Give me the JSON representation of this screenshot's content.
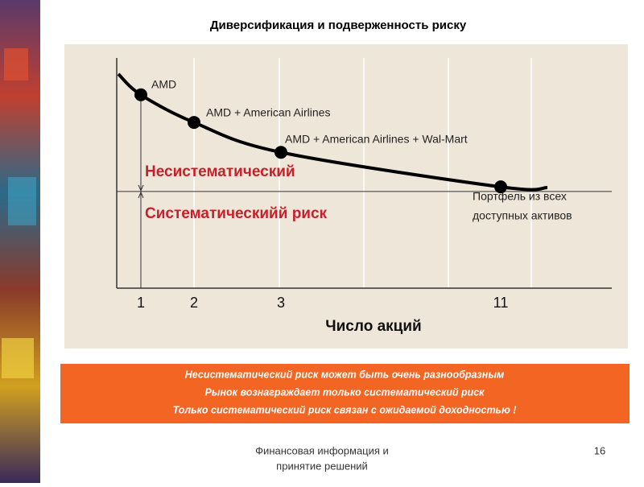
{
  "chart_data": {
    "type": "line",
    "title": "Диверсификация и подверженность риску",
    "categories": [
      "1",
      "2",
      "3",
      "11"
    ],
    "values": [
      84,
      72,
      59,
      44
    ],
    "point_labels": [
      [
        "AMD"
      ],
      [
        "AMD + American Airlines"
      ],
      [
        "AMD + American Airlines + Wal-Mart"
      ],
      [
        "Портфель из всех",
        "доступных активов"
      ]
    ],
    "xlabel": "Число акций",
    "ylim": [
      0,
      100
    ],
    "reference_line": 42,
    "region_labels": [
      "Несистематический",
      "Систематическийй риск"
    ],
    "color": "#000000",
    "region_color": "#c8202a"
  },
  "notes": [
    "Несистематический риск может быть очень разнообразным",
    "Рынок вознаграждает только систематический риск",
    "Только систематический риск связан с ожидаемой доходностью !"
  ],
  "footer": {
    "text": [
      "Финансовая информация и",
      "принятие решений"
    ],
    "page": "16"
  }
}
